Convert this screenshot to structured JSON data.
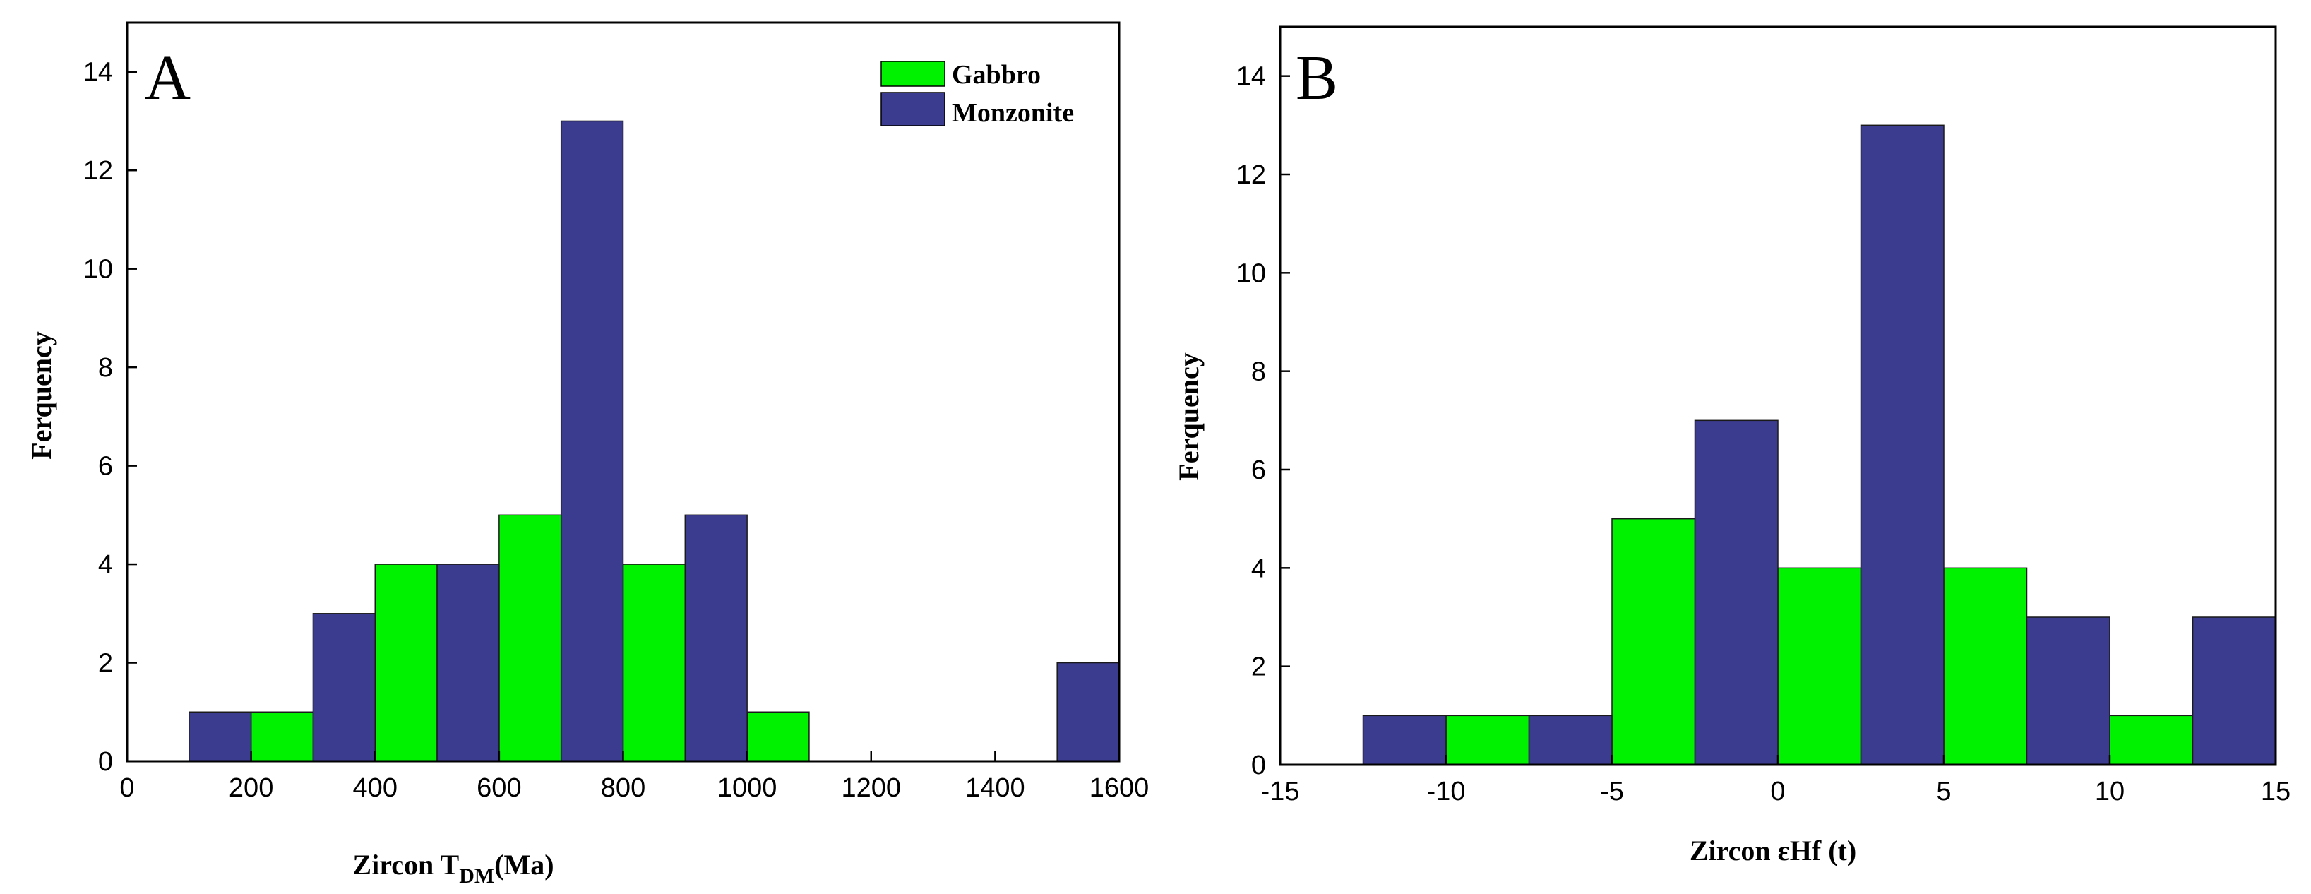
{
  "colors": {
    "gabbro": "#00f200",
    "monzonite": "#3b3b8f",
    "axis": "#000000"
  },
  "chart_data": [
    {
      "type": "bar",
      "panel": "A",
      "ylabel": "Ferquency",
      "xlabel": {
        "prefix": "Zircon T",
        "sub": "DM",
        "suffix": "(Ma)"
      },
      "xlim": [
        0,
        1600
      ],
      "ylim": [
        0,
        15
      ],
      "xticks": [
        0,
        200,
        400,
        600,
        800,
        1000,
        1200,
        1400,
        1600
      ],
      "yticks": [
        0,
        2,
        4,
        6,
        8,
        10,
        12,
        14
      ],
      "legend": {
        "position": "top-right",
        "entries": [
          {
            "label": "Gabbro",
            "series": "Gabbro"
          },
          {
            "label": "Monzonite",
            "series": "Monzonite"
          }
        ]
      },
      "series": [
        {
          "name": "Gabbro",
          "bins": [
            {
              "x0": 200,
              "x1": 300,
              "value": 1
            },
            {
              "x0": 400,
              "x1": 500,
              "value": 4
            },
            {
              "x0": 600,
              "x1": 700,
              "value": 5
            },
            {
              "x0": 800,
              "x1": 900,
              "value": 4
            },
            {
              "x0": 1000,
              "x1": 1100,
              "value": 1
            }
          ]
        },
        {
          "name": "Monzonite",
          "bins": [
            {
              "x0": 100,
              "x1": 200,
              "value": 1
            },
            {
              "x0": 300,
              "x1": 400,
              "value": 3
            },
            {
              "x0": 500,
              "x1": 600,
              "value": 4
            },
            {
              "x0": 700,
              "x1": 800,
              "value": 13
            },
            {
              "x0": 900,
              "x1": 1000,
              "value": 5
            },
            {
              "x0": 1500,
              "x1": 1600,
              "value": 2
            }
          ]
        }
      ]
    },
    {
      "type": "bar",
      "panel": "B",
      "ylabel": "Ferquency",
      "xlabel": {
        "prefix": "Zircon εHf (t)",
        "sub": "",
        "suffix": ""
      },
      "xlim": [
        -15,
        15
      ],
      "ylim": [
        0,
        15
      ],
      "xticks": [
        -15,
        -10,
        -5,
        0,
        5,
        10,
        15
      ],
      "yticks": [
        0,
        2,
        4,
        6,
        8,
        10,
        12,
        14
      ],
      "series": [
        {
          "name": "Gabbro",
          "bins": [
            {
              "x0": -10,
              "x1": -7.5,
              "value": 1
            },
            {
              "x0": -5,
              "x1": -2.5,
              "value": 5
            },
            {
              "x0": 0,
              "x1": 2.5,
              "value": 4
            },
            {
              "x0": 5,
              "x1": 7.5,
              "value": 4
            },
            {
              "x0": 10,
              "x1": 12.5,
              "value": 1
            }
          ]
        },
        {
          "name": "Monzonite",
          "bins": [
            {
              "x0": -12.5,
              "x1": -10,
              "value": 1
            },
            {
              "x0": -7.5,
              "x1": -5,
              "value": 1
            },
            {
              "x0": -2.5,
              "x1": 0,
              "value": 7
            },
            {
              "x0": 2.5,
              "x1": 5,
              "value": 13
            },
            {
              "x0": 7.5,
              "x1": 10,
              "value": 3
            },
            {
              "x0": 12.5,
              "x1": 15,
              "value": 3
            }
          ]
        }
      ]
    }
  ]
}
